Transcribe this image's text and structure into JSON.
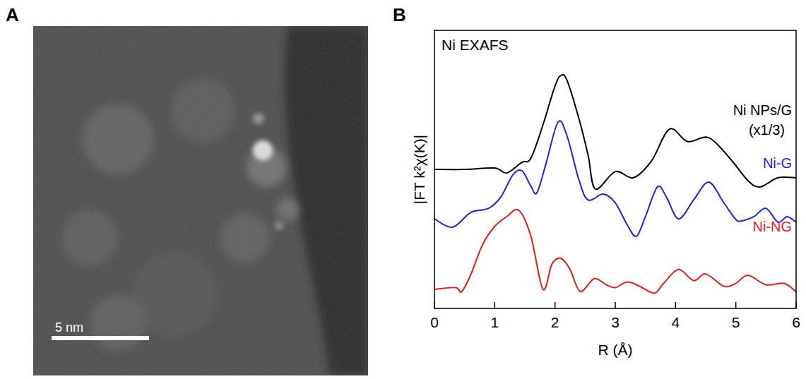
{
  "image_panel": {
    "letter": "A",
    "scale_bar": "5 nm"
  },
  "chart_data": {
    "type": "line",
    "panel_letter": "B",
    "title": "Ni EXAFS",
    "x_label": "R (Å)",
    "y_label": "|FT k²χ(K)|",
    "xlim": [
      0,
      6
    ],
    "xticks": [
      0,
      1,
      2,
      3,
      4,
      5,
      6
    ],
    "ylim": [
      0,
      10
    ],
    "tick_labels": "x",
    "annotations": [
      "(x1/3)"
    ],
    "series": [
      {
        "name": "Ni NPs/G",
        "color": "#000000",
        "x": [
          0,
          0.5,
          1.0,
          1.2,
          1.45,
          1.6,
          1.8,
          2.0,
          2.1,
          2.2,
          2.4,
          2.55,
          2.67,
          3.0,
          3.3,
          3.6,
          3.9,
          4.2,
          4.55,
          4.9,
          5.2,
          5.4,
          5.7,
          6.0
        ],
        "values": [
          5.0,
          5.0,
          5.05,
          4.87,
          5.25,
          5.4,
          6.6,
          8.0,
          8.38,
          8.2,
          6.8,
          5.5,
          4.29,
          4.92,
          4.7,
          5.3,
          6.45,
          6.0,
          6.14,
          5.4,
          4.6,
          4.37,
          4.7,
          4.7
        ]
      },
      {
        "name": "Ni-G",
        "color": "#1f1fe6",
        "x": [
          0,
          0.3,
          0.6,
          0.9,
          1.1,
          1.3,
          1.45,
          1.6,
          1.7,
          1.85,
          2.05,
          2.2,
          2.4,
          2.55,
          2.8,
          3.0,
          3.2,
          3.35,
          3.5,
          3.7,
          3.85,
          4.05,
          4.3,
          4.55,
          4.8,
          5.0,
          5.1,
          5.3,
          5.5,
          5.7,
          5.85,
          6.0
        ],
        "values": [
          3.22,
          2.92,
          3.45,
          3.6,
          4.0,
          4.8,
          4.95,
          4.4,
          4.16,
          5.2,
          6.7,
          6.2,
          4.6,
          3.9,
          4.11,
          3.8,
          3.0,
          2.59,
          3.3,
          4.37,
          4.0,
          3.22,
          3.9,
          4.54,
          3.8,
          3.2,
          3.15,
          3.3,
          3.6,
          3.1,
          3.3,
          3.1
        ]
      },
      {
        "name": "Ni-NG",
        "color": "#e8191a",
        "x": [
          0,
          0.35,
          0.45,
          0.6,
          0.8,
          1.0,
          1.2,
          1.4,
          1.6,
          1.8,
          1.95,
          2.1,
          2.25,
          2.42,
          2.65,
          2.85,
          3.0,
          3.2,
          3.4,
          3.65,
          3.8,
          4.05,
          4.3,
          4.5,
          4.8,
          5.0,
          5.2,
          5.5,
          5.8,
          6.0
        ],
        "values": [
          0.69,
          0.75,
          0.6,
          1.2,
          2.3,
          2.95,
          3.3,
          3.53,
          2.6,
          0.69,
          1.6,
          1.8,
          1.4,
          0.61,
          1.07,
          0.85,
          0.75,
          0.95,
          0.8,
          0.55,
          0.9,
          1.4,
          1.0,
          1.24,
          0.8,
          0.9,
          1.19,
          0.85,
          0.9,
          0.6
        ]
      }
    ]
  }
}
